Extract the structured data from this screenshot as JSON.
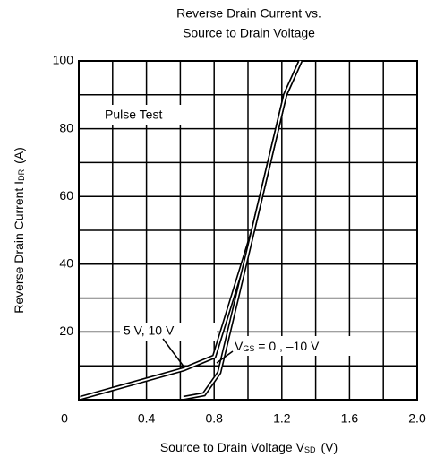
{
  "chart_data": {
    "type": "line",
    "title": [
      "Reverse Drain Current vs.",
      "Source to Drain Voltage"
    ],
    "xlabel": {
      "text": "Source to Drain Voltage  V",
      "sub": "SD",
      "unit": "(V)"
    },
    "ylabel": {
      "text": "Reverse Drain Current  I",
      "sub": "DR",
      "unit": "(A)"
    },
    "annotations": {
      "pulse": "Pulse Test",
      "s1": "5 V, 10 V",
      "s2": {
        "text": "V",
        "sub": "GS",
        "rest": " = 0 , –10 V"
      }
    },
    "xlim": [
      0,
      2
    ],
    "ylim": [
      0,
      100
    ],
    "xticks": [
      0,
      0.4,
      0.8,
      1.2,
      1.6,
      {
        "value": 2,
        "label": "2.0"
      }
    ],
    "yticks": [
      20,
      40,
      60,
      80,
      100
    ],
    "xgrid": [
      0.2,
      0.6,
      1.0,
      1.4,
      1.8
    ],
    "ygrid": [
      10,
      30,
      50,
      70,
      90
    ],
    "grid": true,
    "series": [
      {
        "name": "5 V, 10 V",
        "color": "#000000",
        "x": [
          0.01,
          0.62,
          0.8,
          1.03,
          1.22,
          1.31
        ],
        "values": [
          0.5,
          9,
          12.7,
          50,
          90,
          100
        ]
      },
      {
        "name": "0, –10 V",
        "color": "#000000",
        "x": [
          0.62,
          0.74,
          0.83,
          1.03,
          1.22,
          1.31
        ],
        "values": [
          0.5,
          1.6,
          8,
          50,
          90,
          100
        ]
      }
    ]
  }
}
